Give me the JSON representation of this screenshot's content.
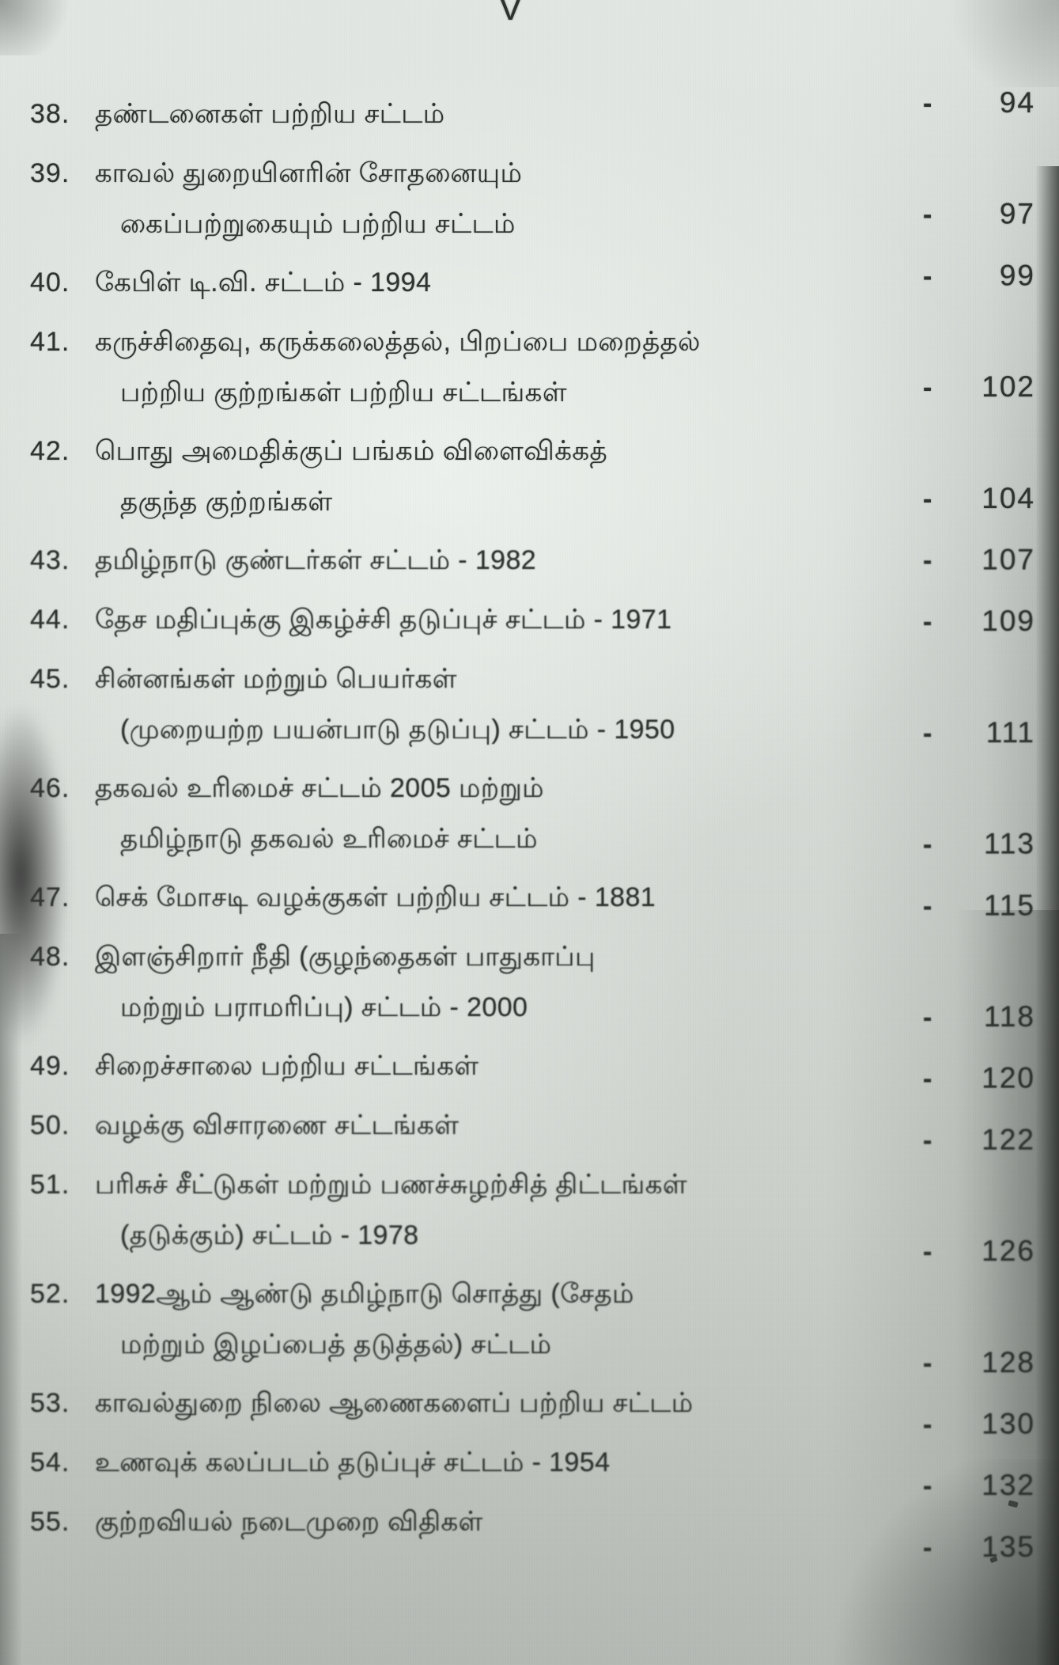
{
  "page": {
    "folio": "V",
    "colors": {
      "paper": "#d6dbd6",
      "ink": "#2f332f"
    },
    "entries": [
      {
        "no": "38.",
        "lines": [
          "தண்டனைகள் பற்றிய சட்டம்"
        ],
        "dash": "-",
        "page": "94",
        "page_line": 1
      },
      {
        "no": "39.",
        "lines": [
          "காவல் துறையினரின் சோதனையும்",
          "கைப்பற்றுகையும் பற்றிய சட்டம்"
        ],
        "dash": "-",
        "page": "97",
        "page_line": 2
      },
      {
        "no": "40.",
        "lines": [
          "கேபிள் டி.வி. சட்டம் - 1994"
        ],
        "dash": "-",
        "page": "99",
        "page_line": 1
      },
      {
        "no": "41.",
        "lines": [
          "கருச்சிதைவு, கருக்கலைத்தல், பிறப்பை மறைத்தல்",
          "பற்றிய குற்றங்கள் பற்றிய சட்டங்கள்"
        ],
        "dash": "-",
        "page": "102",
        "page_line": 2
      },
      {
        "no": "42.",
        "lines": [
          "பொது அமைதிக்குப் பங்கம் விளைவிக்கத்",
          "தகுந்த குற்றங்கள்"
        ],
        "dash": "-",
        "page": "104",
        "page_line": 2
      },
      {
        "no": "43.",
        "lines": [
          "தமிழ்நாடு குண்டர்கள் சட்டம் - 1982"
        ],
        "dash": "-",
        "page": "107",
        "page_line": 1
      },
      {
        "no": "44.",
        "lines": [
          "தேச மதிப்புக்கு இகழ்ச்சி தடுப்புச் சட்டம் - 1971"
        ],
        "dash": "-",
        "page": "109",
        "page_line": 1
      },
      {
        "no": "45.",
        "lines": [
          "சின்னங்கள் மற்றும் பெயர்கள்",
          "(முறையற்ற பயன்பாடு தடுப்பு) சட்டம் - 1950"
        ],
        "dash": "-",
        "page": "111",
        "page_line": 2
      },
      {
        "no": "46.",
        "lines": [
          "தகவல் உரிமைச் சட்டம் 2005 மற்றும்",
          "தமிழ்நாடு தகவல் உரிமைச் சட்டம்"
        ],
        "dash": "-",
        "page": "113",
        "page_line": 2
      },
      {
        "no": "47.",
        "lines": [
          "செக் மோசடி வழக்குகள் பற்றிய சட்டம் - 1881"
        ],
        "dash": "-",
        "page": "115",
        "page_line": 1
      },
      {
        "no": "48.",
        "lines": [
          "இளஞ்சிறார் நீதி (குழந்தைகள் பாதுகாப்பு",
          "மற்றும் பராமரிப்பு) சட்டம் - 2000"
        ],
        "dash": "-",
        "page": "118",
        "page_line": 2
      },
      {
        "no": "49.",
        "lines": [
          "சிறைச்சாலை பற்றிய சட்டங்கள்"
        ],
        "dash": "-",
        "page": "120",
        "page_line": 1
      },
      {
        "no": "50.",
        "lines": [
          "வழக்கு விசாரணை சட்டங்கள்"
        ],
        "dash": "-",
        "page": "122",
        "page_line": 1
      },
      {
        "no": "51.",
        "lines": [
          "பரிசுச் சீட்டுகள் மற்றும் பணச்சுழற்சித் திட்டங்கள்",
          "(தடுக்கும்) சட்டம் - 1978"
        ],
        "dash": "-",
        "page": "126",
        "page_line": 2
      },
      {
        "no": "52.",
        "lines": [
          "1992ஆம் ஆண்டு தமிழ்நாடு சொத்து (சேதம்",
          "மற்றும் இழப்பைத் தடுத்தல்) சட்டம்"
        ],
        "dash": "-",
        "page": "128",
        "page_line": 2
      },
      {
        "no": "53.",
        "lines": [
          "காவல்துறை நிலை ஆணைகளைப் பற்றிய சட்டம்"
        ],
        "dash": "-",
        "page": "130",
        "page_line": 1
      },
      {
        "no": "54.",
        "lines": [
          "உணவுக் கலப்படம் தடுப்புச் சட்டம் - 1954"
        ],
        "dash": "-",
        "page": "132",
        "page_line": 1
      },
      {
        "no": "55.",
        "lines": [
          "குற்றவியல் நடைமுறை விதிகள்"
        ],
        "dash": "-",
        "page": "135",
        "page_line": 1
      }
    ]
  }
}
